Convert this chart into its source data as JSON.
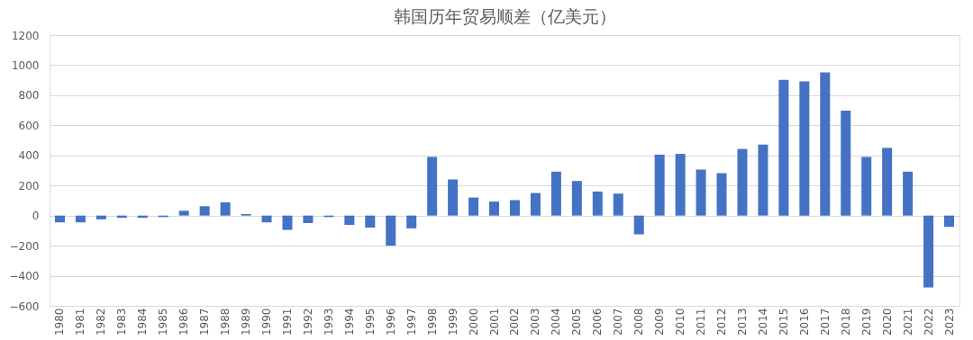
{
  "chart_data": {
    "type": "bar",
    "title": "韩国历年贸易顺差（亿美元）",
    "categories": [
      "1980",
      "1981",
      "1982",
      "1983",
      "1984",
      "1985",
      "1986",
      "1987",
      "1988",
      "1989",
      "1990",
      "1991",
      "1992",
      "1993",
      "1994",
      "1995",
      "1996",
      "1997",
      "1998",
      "1999",
      "2000",
      "2001",
      "2002",
      "2003",
      "2004",
      "2005",
      "2006",
      "2007",
      "2008",
      "2009",
      "2010",
      "2011",
      "2012",
      "2013",
      "2014",
      "2015",
      "2016",
      "2017",
      "2018",
      "2019",
      "2020",
      "2021",
      "2022",
      "2023"
    ],
    "values": [
      -45,
      -45,
      -25,
      -15,
      -15,
      -10,
      32,
      62,
      88,
      10,
      -45,
      -95,
      -50,
      -10,
      -62,
      -80,
      -200,
      -85,
      390,
      240,
      120,
      93,
      103,
      150,
      292,
      230,
      160,
      146,
      -125,
      405,
      410,
      306,
      282,
      443,
      472,
      902,
      892,
      952,
      698,
      390,
      450,
      292,
      -478,
      -75
    ],
    "color": "#4472c4",
    "ylim": [
      -600,
      1200
    ],
    "yticks": [
      -600,
      -400,
      -200,
      0,
      200,
      400,
      600,
      800,
      1000,
      1200
    ],
    "grid": "y"
  }
}
